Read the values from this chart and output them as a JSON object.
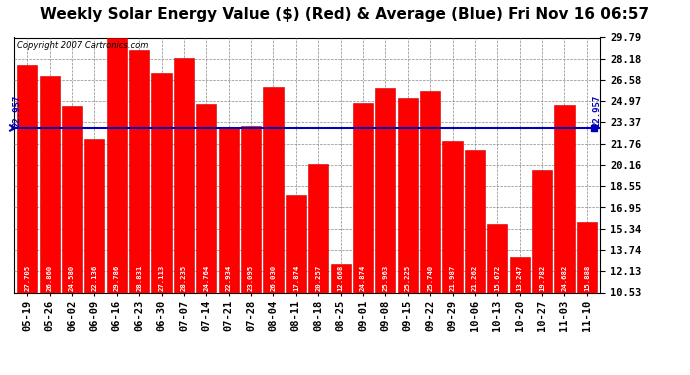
{
  "title": "Weekly Solar Energy Value ($) (Red) & Average (Blue) Fri Nov 16 06:57",
  "copyright": "Copyright 2007 Cartronics.com",
  "average": 22.957,
  "categories": [
    "05-19",
    "05-26",
    "06-02",
    "06-09",
    "06-16",
    "06-23",
    "06-30",
    "07-07",
    "07-14",
    "07-21",
    "07-28",
    "08-04",
    "08-11",
    "08-18",
    "08-25",
    "09-01",
    "09-08",
    "09-15",
    "09-22",
    "09-29",
    "10-06",
    "10-13",
    "10-20",
    "10-27",
    "11-03",
    "11-10"
  ],
  "values": [
    27.705,
    26.86,
    24.58,
    22.136,
    29.786,
    28.831,
    27.113,
    28.235,
    24.764,
    22.934,
    23.095,
    26.03,
    17.874,
    20.257,
    12.668,
    24.874,
    25.963,
    25.225,
    25.74,
    21.987,
    21.262,
    15.672,
    13.247,
    19.782,
    24.682,
    15.888
  ],
  "bar_color": "#ff0000",
  "line_color": "#0000bb",
  "bg_color": "#ffffff",
  "plot_bg_color": "#ffffff",
  "yticks": [
    10.53,
    12.13,
    13.74,
    15.34,
    16.95,
    18.55,
    20.16,
    21.76,
    23.37,
    24.97,
    26.58,
    28.18,
    29.79
  ],
  "ylim_min": 10.53,
  "ylim_max": 29.79,
  "title_fontsize": 11,
  "tick_fontsize": 7.5,
  "bar_edge_color": "#cc0000",
  "grid_color": "#888888",
  "label_color": "#ffffff",
  "avg_label": "22.957"
}
